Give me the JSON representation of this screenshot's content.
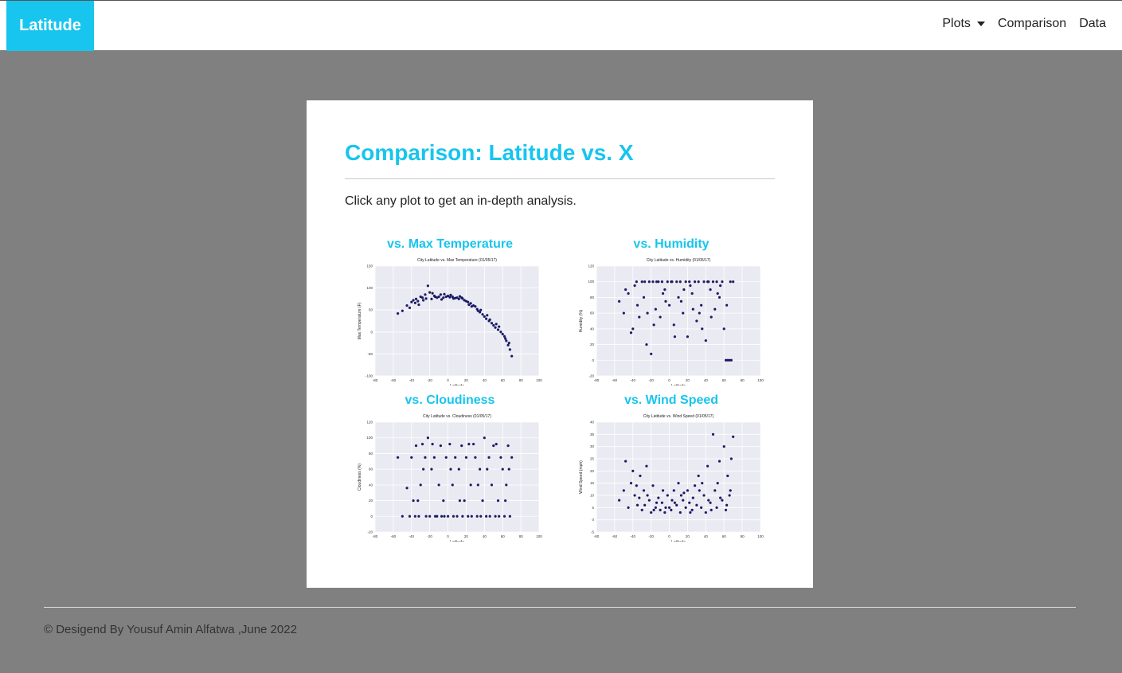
{
  "navbar": {
    "brand": "Latitude",
    "items": [
      {
        "label": "Plots",
        "dropdown": true
      },
      {
        "label": "Comparison"
      },
      {
        "label": "Data"
      }
    ]
  },
  "main": {
    "title": "Comparison: Latitude vs. X",
    "intro": "Click any plot to get an in-depth analysis."
  },
  "footer": {
    "text": "© Desigend By Yousuf Amin Alfatwa ,June 2022"
  },
  "colors": {
    "accent": "#17c5ee",
    "points": "#1a1a7a",
    "plot_bg": "#eaeaf2"
  },
  "chart_data": [
    {
      "type": "scatter",
      "heading": "vs. Max Temperature",
      "title": "City Latitude vs. Max Temperature (01/05/17)",
      "xlabel": "Latitude",
      "ylabel": "Max Temperature (F)",
      "xlim": [
        -80,
        100
      ],
      "ylim": [
        -100,
        150
      ],
      "xticks": [
        -80,
        -60,
        -40,
        -20,
        0,
        20,
        40,
        60,
        80,
        100
      ],
      "yticks": [
        -100,
        -50,
        0,
        50,
        100,
        150
      ],
      "grid": true,
      "points": [
        [
          -55,
          42
        ],
        [
          -50,
          48
        ],
        [
          -45,
          60
        ],
        [
          -42,
          55
        ],
        [
          -40,
          68
        ],
        [
          -38,
          72
        ],
        [
          -35,
          75
        ],
        [
          -32,
          62
        ],
        [
          -30,
          80
        ],
        [
          -28,
          78
        ],
        [
          -25,
          85
        ],
        [
          -22,
          105
        ],
        [
          -20,
          90
        ],
        [
          -18,
          75
        ],
        [
          -15,
          82
        ],
        [
          -12,
          78
        ],
        [
          -10,
          80
        ],
        [
          -8,
          85
        ],
        [
          -5,
          78
        ],
        [
          -2,
          80
        ],
        [
          0,
          82
        ],
        [
          2,
          79
        ],
        [
          5,
          80
        ],
        [
          8,
          77
        ],
        [
          10,
          78
        ],
        [
          12,
          75
        ],
        [
          15,
          78
        ],
        [
          18,
          72
        ],
        [
          20,
          70
        ],
        [
          22,
          68
        ],
        [
          25,
          65
        ],
        [
          28,
          60
        ],
        [
          30,
          58
        ],
        [
          32,
          52
        ],
        [
          35,
          45
        ],
        [
          38,
          40
        ],
        [
          40,
          35
        ],
        [
          42,
          30
        ],
        [
          45,
          25
        ],
        [
          48,
          20
        ],
        [
          50,
          15
        ],
        [
          52,
          10
        ],
        [
          55,
          5
        ],
        [
          58,
          0
        ],
        [
          60,
          -5
        ],
        [
          62,
          -10
        ],
        [
          64,
          -20
        ],
        [
          66,
          -30
        ],
        [
          68,
          -40
        ],
        [
          70,
          -55
        ],
        [
          -33,
          70
        ],
        [
          -27,
          72
        ],
        [
          -17,
          88
        ],
        [
          -7,
          74
        ],
        [
          3,
          84
        ],
        [
          13,
          81
        ],
        [
          23,
          62
        ],
        [
          33,
          48
        ],
        [
          43,
          38
        ],
        [
          53,
          18
        ],
        [
          63,
          -15
        ],
        [
          67,
          -25
        ],
        [
          46,
          28
        ],
        [
          56,
          12
        ],
        [
          36,
          50
        ],
        [
          26,
          58
        ],
        [
          16,
          76
        ],
        [
          6,
          76
        ],
        [
          -4,
          86
        ],
        [
          -14,
          80
        ],
        [
          -24,
          76
        ],
        [
          -36,
          66
        ]
      ]
    },
    {
      "type": "scatter",
      "heading": "vs. Humidity",
      "title": "City Latitude vs. Humidity (01/05/17)",
      "xlabel": "Latitude",
      "ylabel": "Humidity (%)",
      "xlim": [
        -80,
        100
      ],
      "ylim": [
        -20,
        120
      ],
      "xticks": [
        -80,
        -60,
        -40,
        -20,
        0,
        20,
        40,
        60,
        80,
        100
      ],
      "yticks": [
        -20,
        0,
        20,
        40,
        60,
        80,
        100,
        120
      ],
      "grid": true,
      "points": [
        [
          -55,
          75
        ],
        [
          -50,
          60
        ],
        [
          -48,
          90
        ],
        [
          -45,
          85
        ],
        [
          -42,
          35
        ],
        [
          -40,
          40
        ],
        [
          -38,
          95
        ],
        [
          -35,
          70
        ],
        [
          -30,
          100
        ],
        [
          -28,
          80
        ],
        [
          -25,
          20
        ],
        [
          -22,
          100
        ],
        [
          -20,
          8
        ],
        [
          -18,
          100
        ],
        [
          -15,
          65
        ],
        [
          -12,
          100
        ],
        [
          -10,
          55
        ],
        [
          -8,
          100
        ],
        [
          -5,
          90
        ],
        [
          -2,
          100
        ],
        [
          0,
          70
        ],
        [
          2,
          100
        ],
        [
          5,
          45
        ],
        [
          8,
          100
        ],
        [
          10,
          80
        ],
        [
          12,
          100
        ],
        [
          15,
          60
        ],
        [
          18,
          100
        ],
        [
          20,
          30
        ],
        [
          22,
          100
        ],
        [
          25,
          85
        ],
        [
          28,
          100
        ],
        [
          30,
          50
        ],
        [
          32,
          100
        ],
        [
          35,
          70
        ],
        [
          38,
          100
        ],
        [
          40,
          25
        ],
        [
          42,
          100
        ],
        [
          45,
          90
        ],
        [
          48,
          100
        ],
        [
          50,
          65
        ],
        [
          52,
          100
        ],
        [
          55,
          80
        ],
        [
          58,
          100
        ],
        [
          60,
          40
        ],
        [
          62,
          0
        ],
        [
          64,
          0
        ],
        [
          66,
          0
        ],
        [
          68,
          0
        ],
        [
          70,
          100
        ],
        [
          -33,
          55
        ],
        [
          -27,
          100
        ],
        [
          -17,
          45
        ],
        [
          -7,
          85
        ],
        [
          3,
          100
        ],
        [
          13,
          75
        ],
        [
          23,
          95
        ],
        [
          33,
          60
        ],
        [
          43,
          100
        ],
        [
          53,
          85
        ],
        [
          63,
          70
        ],
        [
          67,
          100
        ],
        [
          46,
          55
        ],
        [
          56,
          95
        ],
        [
          36,
          40
        ],
        [
          26,
          65
        ],
        [
          16,
          90
        ],
        [
          6,
          30
        ],
        [
          -4,
          75
        ],
        [
          -14,
          100
        ],
        [
          -24,
          60
        ],
        [
          -36,
          100
        ]
      ]
    },
    {
      "type": "scatter",
      "heading": "vs. Cloudiness",
      "title": "City Latitude vs. Cloudiness (01/05/17)",
      "xlabel": "Latitude",
      "ylabel": "Cloudiness (%)",
      "xlim": [
        -80,
        100
      ],
      "ylim": [
        -20,
        120
      ],
      "xticks": [
        -80,
        -60,
        -40,
        -20,
        0,
        20,
        40,
        60,
        80,
        100
      ],
      "yticks": [
        -20,
        0,
        20,
        40,
        60,
        80,
        100,
        120
      ],
      "grid": true,
      "points": [
        [
          -55,
          75
        ],
        [
          -50,
          0
        ],
        [
          -45,
          36
        ],
        [
          -42,
          0
        ],
        [
          -40,
          75
        ],
        [
          -38,
          20
        ],
        [
          -35,
          90
        ],
        [
          -32,
          0
        ],
        [
          -30,
          40
        ],
        [
          -28,
          92
        ],
        [
          -25,
          75
        ],
        [
          -22,
          100
        ],
        [
          -20,
          0
        ],
        [
          -18,
          60
        ],
        [
          -15,
          75
        ],
        [
          -12,
          0
        ],
        [
          -10,
          40
        ],
        [
          -8,
          90
        ],
        [
          -5,
          20
        ],
        [
          -2,
          75
        ],
        [
          0,
          0
        ],
        [
          2,
          92
        ],
        [
          5,
          40
        ],
        [
          8,
          75
        ],
        [
          10,
          0
        ],
        [
          12,
          60
        ],
        [
          15,
          90
        ],
        [
          18,
          20
        ],
        [
          20,
          75
        ],
        [
          22,
          0
        ],
        [
          25,
          40
        ],
        [
          28,
          92
        ],
        [
          30,
          75
        ],
        [
          32,
          0
        ],
        [
          35,
          60
        ],
        [
          38,
          20
        ],
        [
          40,
          100
        ],
        [
          42,
          0
        ],
        [
          45,
          75
        ],
        [
          48,
          40
        ],
        [
          50,
          90
        ],
        [
          52,
          0
        ],
        [
          55,
          20
        ],
        [
          58,
          75
        ],
        [
          60,
          60
        ],
        [
          62,
          0
        ],
        [
          64,
          40
        ],
        [
          66,
          90
        ],
        [
          68,
          0
        ],
        [
          70,
          75
        ],
        [
          -33,
          20
        ],
        [
          -27,
          60
        ],
        [
          -17,
          92
        ],
        [
          -7,
          0
        ],
        [
          3,
          60
        ],
        [
          13,
          20
        ],
        [
          23,
          92
        ],
        [
          33,
          40
        ],
        [
          43,
          60
        ],
        [
          53,
          92
        ],
        [
          63,
          20
        ],
        [
          67,
          60
        ],
        [
          46,
          0
        ],
        [
          56,
          0
        ],
        [
          36,
          0
        ],
        [
          26,
          0
        ],
        [
          16,
          0
        ],
        [
          6,
          0
        ],
        [
          -4,
          0
        ],
        [
          -14,
          0
        ],
        [
          -24,
          0
        ],
        [
          -36,
          0
        ]
      ]
    },
    {
      "type": "scatter",
      "heading": "vs. Wind Speed",
      "title": "City Latitude vs. Wind Speed (01/05/17)",
      "xlabel": "Latitude",
      "ylabel": "Wind Speed (mph)",
      "xlim": [
        -80,
        100
      ],
      "ylim": [
        -5,
        40
      ],
      "xticks": [
        -80,
        -60,
        -40,
        -20,
        0,
        20,
        40,
        60,
        80,
        100
      ],
      "yticks": [
        -5,
        0,
        5,
        10,
        15,
        20,
        25,
        30,
        35,
        40
      ],
      "grid": true,
      "points": [
        [
          -55,
          8
        ],
        [
          -50,
          12
        ],
        [
          -48,
          24
        ],
        [
          -45,
          5
        ],
        [
          -42,
          15
        ],
        [
          -40,
          20
        ],
        [
          -38,
          10
        ],
        [
          -35,
          6
        ],
        [
          -32,
          18
        ],
        [
          -30,
          4
        ],
        [
          -28,
          12
        ],
        [
          -25,
          22
        ],
        [
          -22,
          8
        ],
        [
          -20,
          3
        ],
        [
          -18,
          14
        ],
        [
          -15,
          5
        ],
        [
          -12,
          9
        ],
        [
          -10,
          4
        ],
        [
          -8,
          7
        ],
        [
          -5,
          3
        ],
        [
          -2,
          10
        ],
        [
          0,
          5
        ],
        [
          2,
          4
        ],
        [
          5,
          12
        ],
        [
          8,
          6
        ],
        [
          10,
          15
        ],
        [
          12,
          3
        ],
        [
          15,
          8
        ],
        [
          18,
          5
        ],
        [
          20,
          12
        ],
        [
          22,
          7
        ],
        [
          25,
          4
        ],
        [
          28,
          14
        ],
        [
          30,
          6
        ],
        [
          32,
          18
        ],
        [
          35,
          5
        ],
        [
          38,
          10
        ],
        [
          40,
          3
        ],
        [
          42,
          22
        ],
        [
          45,
          7
        ],
        [
          48,
          35
        ],
        [
          50,
          12
        ],
        [
          52,
          5
        ],
        [
          55,
          24
        ],
        [
          58,
          8
        ],
        [
          60,
          30
        ],
        [
          62,
          4
        ],
        [
          64,
          18
        ],
        [
          66,
          10
        ],
        [
          68,
          25
        ],
        [
          70,
          34
        ],
        [
          -33,
          9
        ],
        [
          -27,
          6
        ],
        [
          -17,
          4
        ],
        [
          -7,
          12
        ],
        [
          3,
          8
        ],
        [
          13,
          10
        ],
        [
          23,
          3
        ],
        [
          33,
          12
        ],
        [
          43,
          8
        ],
        [
          53,
          15
        ],
        [
          63,
          6
        ],
        [
          67,
          12
        ],
        [
          46,
          4
        ],
        [
          56,
          9
        ],
        [
          36,
          15
        ],
        [
          26,
          9
        ],
        [
          16,
          11
        ],
        [
          6,
          7
        ],
        [
          -4,
          5
        ],
        [
          -14,
          7
        ],
        [
          -24,
          10
        ],
        [
          -36,
          14
        ]
      ]
    }
  ]
}
